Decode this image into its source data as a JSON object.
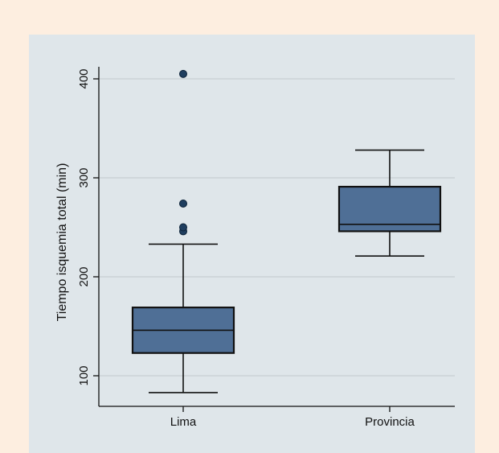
{
  "chart_data": {
    "type": "box",
    "ylabel": "Tiempo isquemia total (min)",
    "xlabel": "",
    "ylim": [
      70,
      420
    ],
    "yticks": [
      100,
      200,
      300,
      400
    ],
    "grid": true,
    "colors": {
      "box_fill": "#4f6f96",
      "outlier": "#1f3e5f",
      "grid": "#c8ced2",
      "stroke": "#111111"
    },
    "categories": [
      "Lima",
      "Provincia"
    ],
    "boxes": [
      {
        "category": "Lima",
        "whisker_low": 83,
        "q1": 123,
        "median": 146,
        "q3": 169,
        "whisker_high": 233,
        "outliers": [
          246,
          250,
          274,
          405
        ]
      },
      {
        "category": "Provincia",
        "whisker_low": 221,
        "q1": 246,
        "median": 253,
        "q3": 291,
        "whisker_high": 328,
        "outliers": []
      }
    ]
  }
}
